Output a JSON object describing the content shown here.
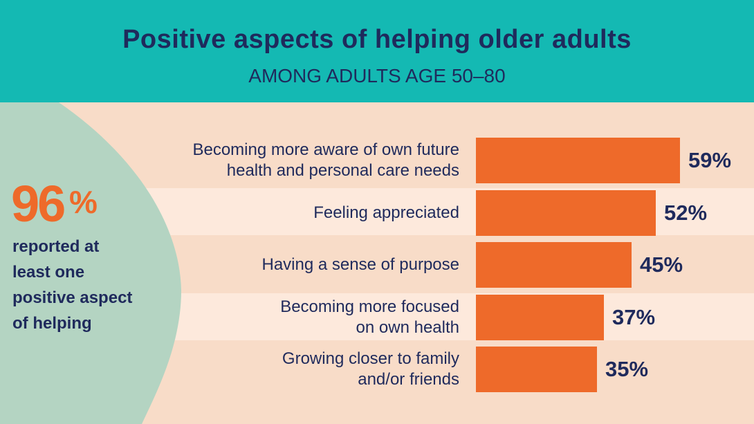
{
  "title": "Positive aspects of helping older adults",
  "subtitle": "AMONG ADULTS AGE 50–80",
  "highlight": {
    "number": "96",
    "unit": "%",
    "text": "reported at\nleast one\npositive aspect\nof helping"
  },
  "chart_data": {
    "type": "bar",
    "orientation": "horizontal",
    "color": "#ee6a2a",
    "categories": [
      "Becoming more aware of own future\nhealth and personal care needs",
      "Feeling appreciated",
      "Having a sense of purpose",
      "Becoming more focused\non own health",
      "Growing closer to family\nand/or friends"
    ],
    "values": [
      59,
      52,
      45,
      37,
      35
    ],
    "value_labels": [
      "59%",
      "52%",
      "45%",
      "37%",
      "35%"
    ]
  }
}
